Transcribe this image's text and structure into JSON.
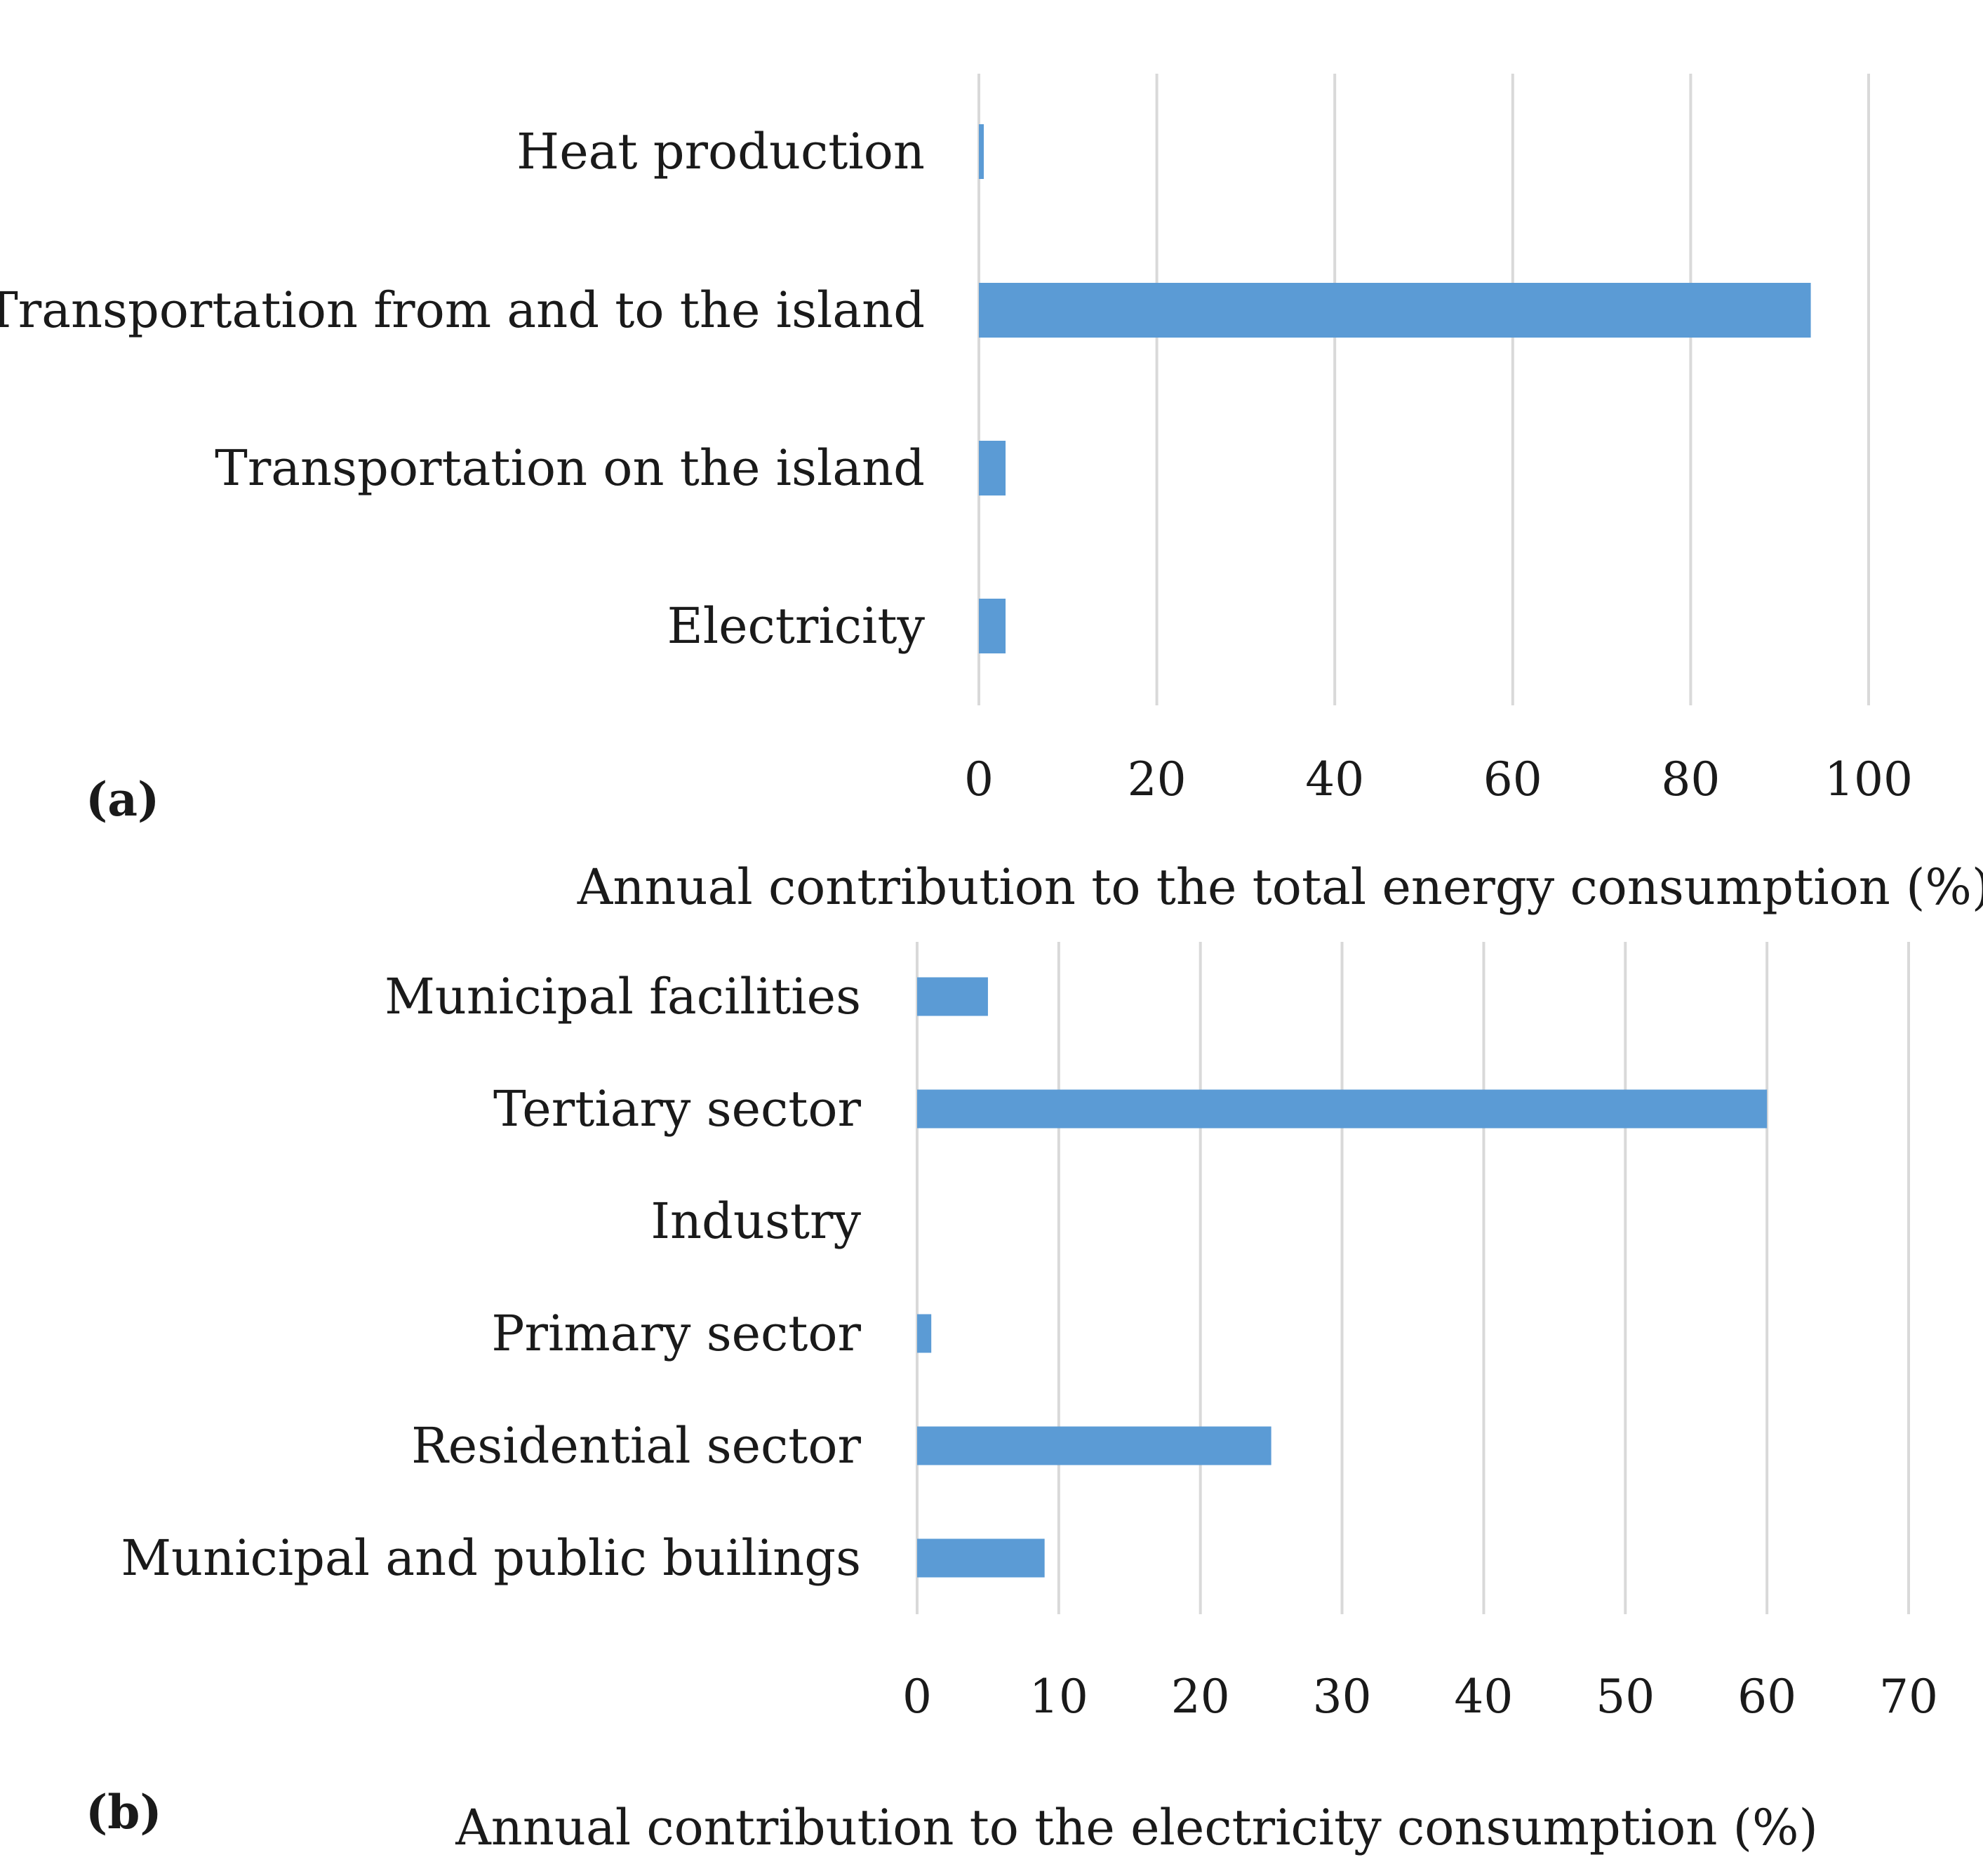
{
  "chart_data": [
    {
      "type": "bar",
      "orientation": "horizontal",
      "panel": "(a)",
      "categories": [
        "Heat production",
        "Transportation from and to the island",
        "Transportation on the island",
        "Electricity"
      ],
      "values": [
        0.5,
        93.5,
        3,
        3
      ],
      "xlabel": "Annual contribution to the total energy consumption (%)",
      "xlim": [
        0,
        100
      ],
      "ticks": [
        0,
        20,
        40,
        60,
        80,
        100
      ],
      "grid": true,
      "bar_color": "#5b9bd5"
    },
    {
      "type": "bar",
      "orientation": "horizontal",
      "panel": "(b)",
      "categories": [
        "Municipal facilities",
        "Tertiary sector",
        "Industry",
        "Primary sector",
        "Residential sector",
        "Municipal and public builings"
      ],
      "values": [
        5,
        60,
        0,
        1,
        25,
        9
      ],
      "xlabel": "Annual contribution to the electricity consumption (%)",
      "xlim": [
        0,
        70
      ],
      "ticks": [
        0,
        10,
        20,
        30,
        40,
        50,
        60,
        70
      ],
      "grid": true,
      "bar_color": "#5b9bd5"
    }
  ]
}
